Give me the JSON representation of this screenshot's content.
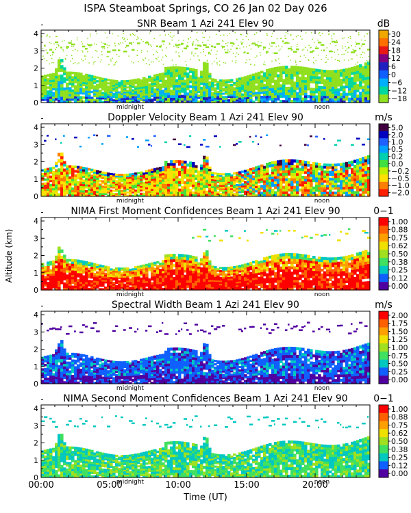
{
  "figure_title": "ISPA Steamboat Springs, CO   26 Jan 02 Day 026",
  "ylabel": "Altitude (km)",
  "xlabel": "Time (UT)",
  "x_ticks": [
    "00:00",
    "05:00",
    "10:00",
    "15:00",
    "20:00"
  ],
  "x_tick_hours": [
    0,
    5,
    10,
    15,
    20
  ],
  "markers": {
    "midnight": "midnight",
    "noon": "noon"
  },
  "marker_hours": {
    "midnight": 6.5,
    "noon": 20.5
  },
  "y_ticks": [
    "0",
    "1",
    "2",
    "3",
    "4"
  ],
  "chart_data": [
    {
      "type": "heatmap",
      "title": "SNR Beam 1 Azi 241 Elev 90",
      "unit": "dB",
      "xlim": [
        0,
        24
      ],
      "ylim": [
        0,
        4.2
      ],
      "colorbar": [
        "30",
        "24",
        "18",
        "12",
        "6",
        "0",
        "−6",
        "−12",
        "−18"
      ],
      "colors": [
        "#f0a800",
        "#ff7000",
        "#e81818",
        "#800080",
        "#2020c0",
        "#1060ff",
        "#00b0ff",
        "#00d8a0",
        "#90e020"
      ]
    },
    {
      "type": "heatmap",
      "title": "Doppler Velocity Beam 1 Azi 241 Elev 90",
      "unit": "m/s",
      "xlim": [
        0,
        24
      ],
      "ylim": [
        0,
        4.2
      ],
      "colorbar": [
        "5.0",
        "2.0",
        "1.0",
        "0.5",
        "0.2",
        "0.0",
        "−0.2",
        "−0.5",
        "−1.0",
        "−2.0"
      ],
      "colors": [
        "#400040",
        "#0000c0",
        "#2060ff",
        "#00a0ff",
        "#00d0b0",
        "#40e040",
        "#c0f000",
        "#ffe000",
        "#ff8000",
        "#ff2000"
      ]
    },
    {
      "type": "heatmap",
      "title": "NIMA First Moment Confidences Beam 1 Azi 241 Elev 90",
      "unit": "0−1",
      "xlim": [
        0,
        24
      ],
      "ylim": [
        0,
        4.2
      ],
      "colorbar": [
        "1.00",
        "0.88",
        "0.75",
        "0.62",
        "0.50",
        "0.38",
        "0.25",
        "0.12",
        "0.00"
      ],
      "colors": [
        "#ff0000",
        "#ff6000",
        "#ffa000",
        "#f0e000",
        "#a0e020",
        "#40e060",
        "#00c8c0",
        "#1060ff",
        "#5000a0"
      ]
    },
    {
      "type": "heatmap",
      "title": "Spectral Width Beam 1 Azi 241 Elev 90",
      "unit": "m/s",
      "xlim": [
        0,
        24
      ],
      "ylim": [
        0,
        4.2
      ],
      "colorbar": [
        "2.00",
        "1.75",
        "1.50",
        "1.25",
        "1.00",
        "0.75",
        "0.50",
        "0.25",
        "0.00"
      ],
      "colors": [
        "#ff0000",
        "#ff6000",
        "#ffa000",
        "#f0e000",
        "#a0e020",
        "#40e060",
        "#00c8c0",
        "#1060ff",
        "#5000a0"
      ]
    },
    {
      "type": "heatmap",
      "title": "NIMA Second Moment Confidences Beam 1 Azi 241 Elev 90",
      "unit": "0−1",
      "xlim": [
        0,
        24
      ],
      "ylim": [
        0,
        4.2
      ],
      "colorbar": [
        "1.00",
        "0.88",
        "0.75",
        "0.62",
        "0.50",
        "0.38",
        "0.25",
        "0.12",
        "0.00"
      ],
      "colors": [
        "#ff0000",
        "#ff6000",
        "#ffa000",
        "#f0e000",
        "#a0e020",
        "#40e060",
        "#00c8c0",
        "#1060ff",
        "#5000a0"
      ]
    }
  ]
}
